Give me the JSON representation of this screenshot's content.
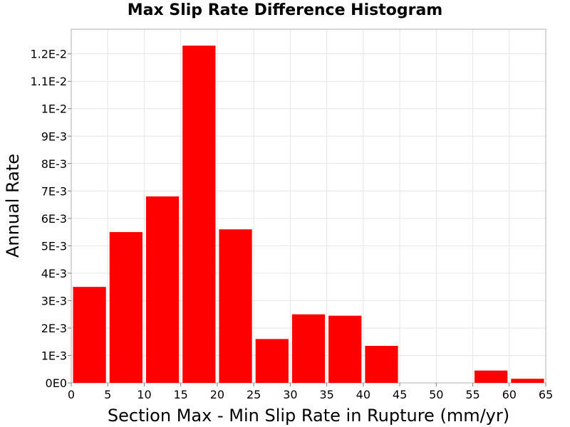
{
  "chart_data": {
    "type": "bar",
    "title": "Max Slip Rate Difference Histogram",
    "xlabel": "Section Max - Min Slip Rate in Rupture (mm/yr)",
    "ylabel": "Annual Rate",
    "xlim": [
      0,
      65
    ],
    "ylim": [
      0,
      0.0129
    ],
    "grid": true,
    "bar_color": "#ff0000",
    "x_ticks": [
      {
        "value": 0,
        "label": "0"
      },
      {
        "value": 5,
        "label": "5"
      },
      {
        "value": 10,
        "label": "10"
      },
      {
        "value": 15,
        "label": "15"
      },
      {
        "value": 20,
        "label": "20"
      },
      {
        "value": 25,
        "label": "25"
      },
      {
        "value": 30,
        "label": "30"
      },
      {
        "value": 35,
        "label": "35"
      },
      {
        "value": 40,
        "label": "40"
      },
      {
        "value": 45,
        "label": "45"
      },
      {
        "value": 50,
        "label": "50"
      },
      {
        "value": 55,
        "label": "55"
      },
      {
        "value": 60,
        "label": "60"
      },
      {
        "value": 65,
        "label": "65"
      }
    ],
    "y_ticks": [
      {
        "value": 0,
        "label": "0E0"
      },
      {
        "value": 0.001,
        "label": "1E-3"
      },
      {
        "value": 0.002,
        "label": "2E-3"
      },
      {
        "value": 0.003,
        "label": "3E-3"
      },
      {
        "value": 0.004,
        "label": "4E-3"
      },
      {
        "value": 0.005,
        "label": "5E-3"
      },
      {
        "value": 0.006,
        "label": "6E-3"
      },
      {
        "value": 0.007,
        "label": "7E-3"
      },
      {
        "value": 0.008,
        "label": "8E-3"
      },
      {
        "value": 0.009,
        "label": "9E-3"
      },
      {
        "value": 0.01,
        "label": "1E-2"
      },
      {
        "value": 0.011,
        "label": "1.1E-2"
      },
      {
        "value": 0.012,
        "label": "1.2E-2"
      }
    ],
    "bins": [
      {
        "x0": 0,
        "x1": 5,
        "value": 0.0035
      },
      {
        "x0": 5,
        "x1": 10,
        "value": 0.0055
      },
      {
        "x0": 10,
        "x1": 15,
        "value": 0.0068
      },
      {
        "x0": 15,
        "x1": 20,
        "value": 0.0123
      },
      {
        "x0": 20,
        "x1": 25,
        "value": 0.0056
      },
      {
        "x0": 25,
        "x1": 30,
        "value": 0.0016
      },
      {
        "x0": 30,
        "x1": 35,
        "value": 0.0025
      },
      {
        "x0": 35,
        "x1": 40,
        "value": 0.00245
      },
      {
        "x0": 40,
        "x1": 45,
        "value": 0.00135
      },
      {
        "x0": 45,
        "x1": 50,
        "value": 0
      },
      {
        "x0": 50,
        "x1": 55,
        "value": 0
      },
      {
        "x0": 55,
        "x1": 60,
        "value": 0.00045
      },
      {
        "x0": 60,
        "x1": 65,
        "value": 0.00015
      }
    ]
  }
}
